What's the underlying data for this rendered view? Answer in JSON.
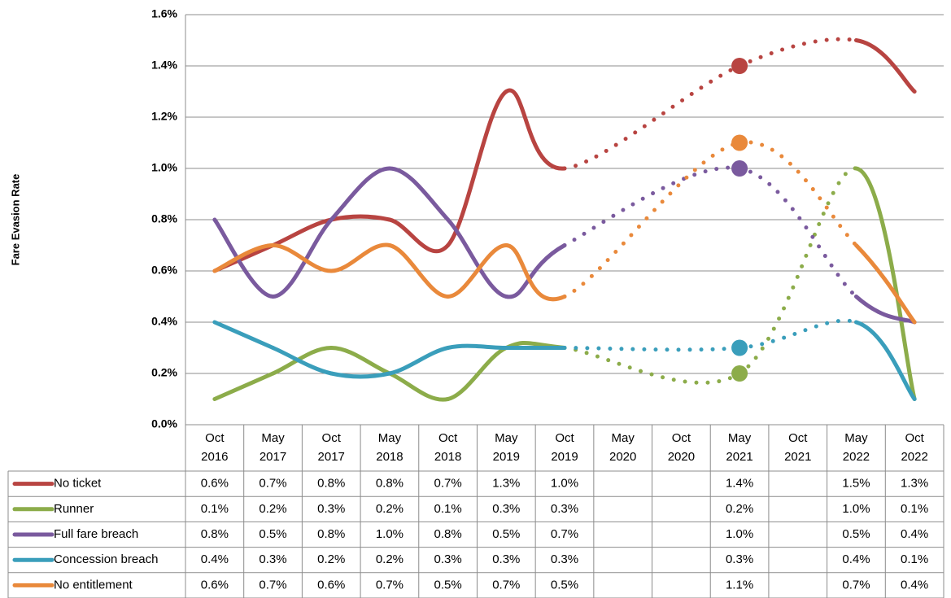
{
  "chart_data": {
    "type": "line",
    "y_label": "Fare Evasion Rate",
    "categories": [
      "Oct 2016",
      "May 2017",
      "Oct 2017",
      "May 2018",
      "Oct 2018",
      "May 2019",
      "Oct 2019",
      "May 2020",
      "Oct 2020",
      "May 2021",
      "Oct 2021",
      "May 2022",
      "Oct 2022"
    ],
    "ylim": [
      0,
      1.6
    ],
    "yticks": [
      {
        "value": 0,
        "label": "0.0%"
      },
      {
        "value": 0.2,
        "label": "0.2%"
      },
      {
        "value": 0.4,
        "label": "0.4%"
      },
      {
        "value": 0.6,
        "label": "0.6%"
      },
      {
        "value": 0.8,
        "label": "0.8%"
      },
      {
        "value": 1.0,
        "label": "1.0%"
      },
      {
        "value": 1.2,
        "label": "1.2%"
      },
      {
        "value": 1.4,
        "label": "1.4%"
      },
      {
        "value": 1.6,
        "label": "1.6%"
      }
    ],
    "grid": true,
    "series": [
      {
        "name": "No ticket",
        "color": "#b84441",
        "values": [
          0.6,
          0.7,
          0.8,
          0.8,
          0.7,
          1.3,
          1.0,
          null,
          null,
          1.4,
          null,
          1.5,
          1.3
        ],
        "value_labels": [
          "0.6%",
          "0.7%",
          "0.8%",
          "0.8%",
          "0.7%",
          "1.3%",
          "1.0%",
          null,
          null,
          "1.4%",
          null,
          "1.5%",
          "1.3%"
        ]
      },
      {
        "name": "Runner",
        "color": "#8cac4a",
        "values": [
          0.1,
          0.2,
          0.3,
          0.2,
          0.1,
          0.3,
          0.3,
          null,
          null,
          0.2,
          null,
          1.0,
          0.1
        ],
        "value_labels": [
          "0.1%",
          "0.2%",
          "0.3%",
          "0.2%",
          "0.1%",
          "0.3%",
          "0.3%",
          null,
          null,
          "0.2%",
          null,
          "1.0%",
          "0.1%"
        ]
      },
      {
        "name": "Full fare breach",
        "color": "#7a5a9e",
        "values": [
          0.8,
          0.5,
          0.8,
          1.0,
          0.8,
          0.5,
          0.7,
          null,
          null,
          1.0,
          null,
          0.5,
          0.4
        ],
        "value_labels": [
          "0.8%",
          "0.5%",
          "0.8%",
          "1.0%",
          "0.8%",
          "0.5%",
          "0.7%",
          null,
          null,
          "1.0%",
          null,
          "0.5%",
          "0.4%"
        ]
      },
      {
        "name": "Concession breach",
        "color": "#3a9ebb",
        "values": [
          0.4,
          0.3,
          0.2,
          0.2,
          0.3,
          0.3,
          0.3,
          null,
          null,
          0.3,
          null,
          0.4,
          0.1
        ],
        "value_labels": [
          "0.4%",
          "0.3%",
          "0.2%",
          "0.2%",
          "0.3%",
          "0.3%",
          "0.3%",
          null,
          null,
          "0.3%",
          null,
          "0.4%",
          "0.1%"
        ]
      },
      {
        "name": "No entitlement",
        "color": "#e9893b",
        "values": [
          0.6,
          0.7,
          0.6,
          0.7,
          0.5,
          0.7,
          0.5,
          null,
          null,
          1.1,
          null,
          0.7,
          0.4
        ],
        "value_labels": [
          "0.6%",
          "0.7%",
          "0.6%",
          "0.7%",
          "0.5%",
          "0.7%",
          "0.5%",
          null,
          null,
          "1.1%",
          null,
          "0.7%",
          "0.4%"
        ]
      }
    ]
  }
}
